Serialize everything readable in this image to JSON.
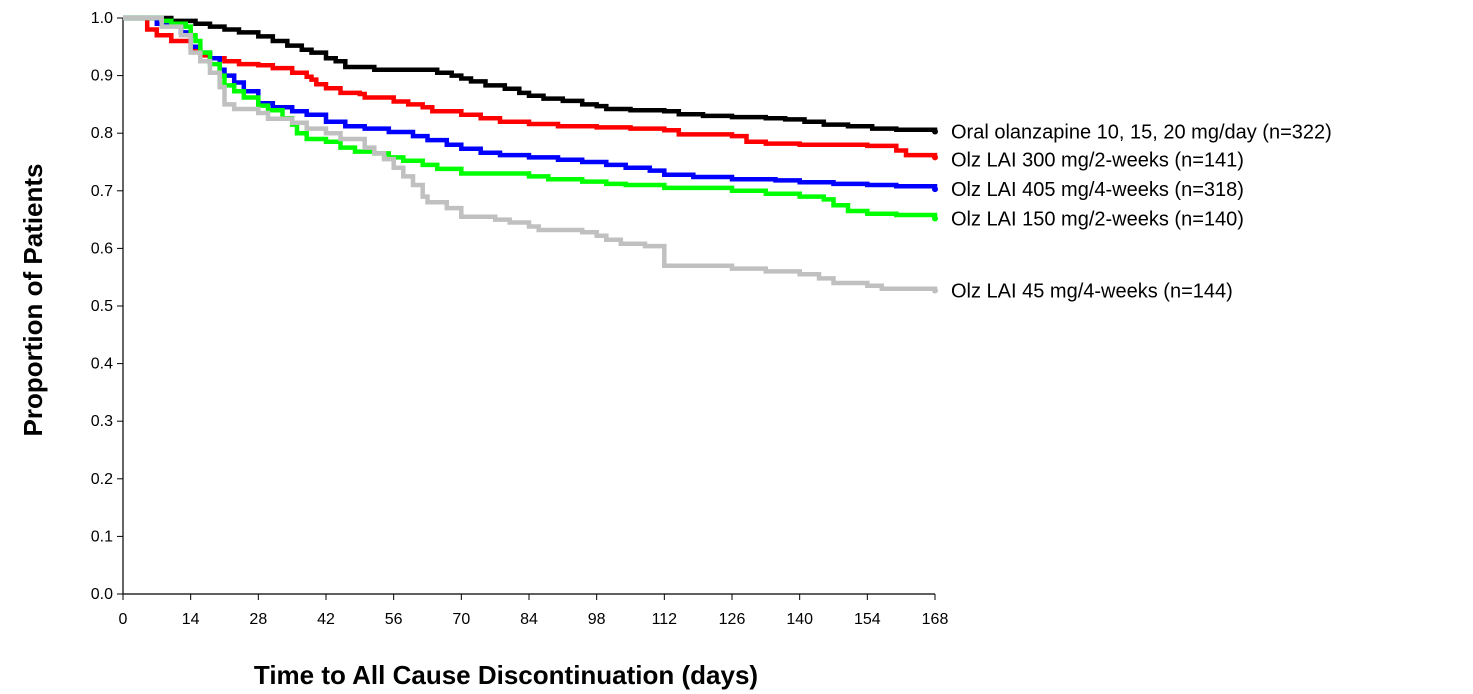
{
  "chart_data": {
    "type": "line",
    "title": "",
    "xlabel": "Time to All Cause Discontinuation (days)",
    "ylabel": "Proportion of Patients",
    "xlim": [
      0,
      168
    ],
    "ylim": [
      0.0,
      1.0
    ],
    "x_ticks": [
      "0",
      "14",
      "28",
      "42",
      "56",
      "70",
      "84",
      "98",
      "112",
      "126",
      "140",
      "154",
      "168"
    ],
    "y_ticks": [
      "0.0",
      "0.1",
      "0.2",
      "0.3",
      "0.4",
      "0.5",
      "0.6",
      "0.7",
      "0.8",
      "0.9",
      "1.0"
    ],
    "grid": false,
    "legend_placement": "right (end-of-line labels)",
    "series": [
      {
        "name": "Oral olanzapine 10, 15, 20 mg/day (n=322)",
        "color": "#000000",
        "points": [
          [
            0,
            1.0
          ],
          [
            7,
            1.0
          ],
          [
            10,
            0.995
          ],
          [
            15,
            0.99
          ],
          [
            18,
            0.985
          ],
          [
            21,
            0.98
          ],
          [
            24,
            0.975
          ],
          [
            28,
            0.968
          ],
          [
            31,
            0.96
          ],
          [
            34,
            0.952
          ],
          [
            37,
            0.945
          ],
          [
            39,
            0.94
          ],
          [
            42,
            0.93
          ],
          [
            44,
            0.925
          ],
          [
            46,
            0.915
          ],
          [
            50,
            0.915
          ],
          [
            52,
            0.91
          ],
          [
            63,
            0.91
          ],
          [
            65,
            0.905
          ],
          [
            68,
            0.9
          ],
          [
            70,
            0.895
          ],
          [
            72,
            0.89
          ],
          [
            75,
            0.883
          ],
          [
            79,
            0.877
          ],
          [
            82,
            0.87
          ],
          [
            84,
            0.865
          ],
          [
            87,
            0.86
          ],
          [
            91,
            0.856
          ],
          [
            95,
            0.85
          ],
          [
            98,
            0.847
          ],
          [
            100,
            0.842
          ],
          [
            105,
            0.84
          ],
          [
            112,
            0.838
          ],
          [
            115,
            0.833
          ],
          [
            120,
            0.83
          ],
          [
            126,
            0.828
          ],
          [
            133,
            0.826
          ],
          [
            137,
            0.824
          ],
          [
            141,
            0.82
          ],
          [
            145,
            0.815
          ],
          [
            150,
            0.812
          ],
          [
            155,
            0.808
          ],
          [
            160,
            0.806
          ],
          [
            168,
            0.803
          ]
        ]
      },
      {
        "name": "Olz LAI 300 mg/2-weeks (n=141)",
        "color": "#ff0000",
        "points": [
          [
            0,
            1.0
          ],
          [
            5,
            0.98
          ],
          [
            7,
            0.97
          ],
          [
            10,
            0.96
          ],
          [
            14,
            0.945
          ],
          [
            16,
            0.935
          ],
          [
            18,
            0.93
          ],
          [
            21,
            0.925
          ],
          [
            24,
            0.92
          ],
          [
            28,
            0.918
          ],
          [
            31,
            0.913
          ],
          [
            35,
            0.905
          ],
          [
            38,
            0.898
          ],
          [
            39,
            0.893
          ],
          [
            40,
            0.885
          ],
          [
            42,
            0.878
          ],
          [
            45,
            0.87
          ],
          [
            49,
            0.868
          ],
          [
            50,
            0.862
          ],
          [
            56,
            0.855
          ],
          [
            59,
            0.85
          ],
          [
            62,
            0.845
          ],
          [
            64,
            0.838
          ],
          [
            70,
            0.832
          ],
          [
            74,
            0.826
          ],
          [
            78,
            0.82
          ],
          [
            84,
            0.816
          ],
          [
            90,
            0.812
          ],
          [
            98,
            0.81
          ],
          [
            105,
            0.808
          ],
          [
            112,
            0.805
          ],
          [
            115,
            0.798
          ],
          [
            126,
            0.795
          ],
          [
            129,
            0.785
          ],
          [
            133,
            0.782
          ],
          [
            140,
            0.78
          ],
          [
            154,
            0.778
          ],
          [
            160,
            0.77
          ],
          [
            162,
            0.762
          ],
          [
            168,
            0.758
          ]
        ]
      },
      {
        "name": "Olz LAI 405 mg/4-weeks (n=318)",
        "color": "#0000ff",
        "points": [
          [
            0,
            1.0
          ],
          [
            7,
            0.99
          ],
          [
            12,
            0.975
          ],
          [
            14,
            0.95
          ],
          [
            16,
            0.94
          ],
          [
            18,
            0.93
          ],
          [
            20,
            0.91
          ],
          [
            21,
            0.9
          ],
          [
            23,
            0.888
          ],
          [
            25,
            0.873
          ],
          [
            28,
            0.852
          ],
          [
            31,
            0.845
          ],
          [
            35,
            0.838
          ],
          [
            38,
            0.832
          ],
          [
            42,
            0.82
          ],
          [
            46,
            0.812
          ],
          [
            50,
            0.808
          ],
          [
            55,
            0.802
          ],
          [
            60,
            0.795
          ],
          [
            63,
            0.788
          ],
          [
            67,
            0.78
          ],
          [
            70,
            0.773
          ],
          [
            74,
            0.766
          ],
          [
            78,
            0.762
          ],
          [
            84,
            0.758
          ],
          [
            90,
            0.754
          ],
          [
            95,
            0.75
          ],
          [
            100,
            0.745
          ],
          [
            104,
            0.74
          ],
          [
            109,
            0.735
          ],
          [
            112,
            0.728
          ],
          [
            118,
            0.724
          ],
          [
            126,
            0.72
          ],
          [
            135,
            0.718
          ],
          [
            140,
            0.715
          ],
          [
            147,
            0.712
          ],
          [
            154,
            0.71
          ],
          [
            160,
            0.708
          ],
          [
            168,
            0.703
          ]
        ]
      },
      {
        "name": "Olz LAI 150 mg/2-weeks (n=140)",
        "color": "#00ff00",
        "points": [
          [
            0,
            1.0
          ],
          [
            8,
            0.995
          ],
          [
            10,
            0.99
          ],
          [
            13,
            0.985
          ],
          [
            14,
            0.97
          ],
          [
            15,
            0.96
          ],
          [
            16,
            0.94
          ],
          [
            18,
            0.92
          ],
          [
            20,
            0.9
          ],
          [
            21,
            0.883
          ],
          [
            23,
            0.873
          ],
          [
            25,
            0.862
          ],
          [
            28,
            0.848
          ],
          [
            30,
            0.84
          ],
          [
            33,
            0.826
          ],
          [
            35,
            0.815
          ],
          [
            36,
            0.8
          ],
          [
            38,
            0.79
          ],
          [
            42,
            0.785
          ],
          [
            45,
            0.775
          ],
          [
            48,
            0.768
          ],
          [
            52,
            0.765
          ],
          [
            55,
            0.758
          ],
          [
            58,
            0.752
          ],
          [
            62,
            0.745
          ],
          [
            65,
            0.738
          ],
          [
            70,
            0.73
          ],
          [
            84,
            0.725
          ],
          [
            88,
            0.72
          ],
          [
            95,
            0.716
          ],
          [
            100,
            0.712
          ],
          [
            104,
            0.71
          ],
          [
            112,
            0.705
          ],
          [
            126,
            0.7
          ],
          [
            133,
            0.695
          ],
          [
            140,
            0.69
          ],
          [
            145,
            0.685
          ],
          [
            147,
            0.675
          ],
          [
            150,
            0.665
          ],
          [
            154,
            0.66
          ],
          [
            160,
            0.658
          ],
          [
            168,
            0.652
          ]
        ]
      },
      {
        "name": "Olz LAI 45 mg/4-weeks (n=144)",
        "color": "#c0c0c0",
        "points": [
          [
            0,
            1.0
          ],
          [
            8,
            0.985
          ],
          [
            12,
            0.97
          ],
          [
            14,
            0.94
          ],
          [
            16,
            0.925
          ],
          [
            18,
            0.905
          ],
          [
            20,
            0.88
          ],
          [
            21,
            0.85
          ],
          [
            23,
            0.842
          ],
          [
            28,
            0.835
          ],
          [
            30,
            0.825
          ],
          [
            35,
            0.818
          ],
          [
            38,
            0.808
          ],
          [
            42,
            0.8
          ],
          [
            45,
            0.79
          ],
          [
            50,
            0.775
          ],
          [
            52,
            0.765
          ],
          [
            54,
            0.755
          ],
          [
            56,
            0.74
          ],
          [
            58,
            0.725
          ],
          [
            60,
            0.71
          ],
          [
            62,
            0.69
          ],
          [
            63,
            0.68
          ],
          [
            67,
            0.67
          ],
          [
            70,
            0.655
          ],
          [
            77,
            0.65
          ],
          [
            80,
            0.645
          ],
          [
            84,
            0.638
          ],
          [
            86,
            0.632
          ],
          [
            95,
            0.628
          ],
          [
            98,
            0.622
          ],
          [
            100,
            0.615
          ],
          [
            103,
            0.608
          ],
          [
            108,
            0.604
          ],
          [
            112,
            0.57
          ],
          [
            126,
            0.565
          ],
          [
            133,
            0.56
          ],
          [
            140,
            0.555
          ],
          [
            144,
            0.548
          ],
          [
            147,
            0.54
          ],
          [
            154,
            0.535
          ],
          [
            157,
            0.53
          ],
          [
            168,
            0.527
          ]
        ]
      }
    ]
  }
}
